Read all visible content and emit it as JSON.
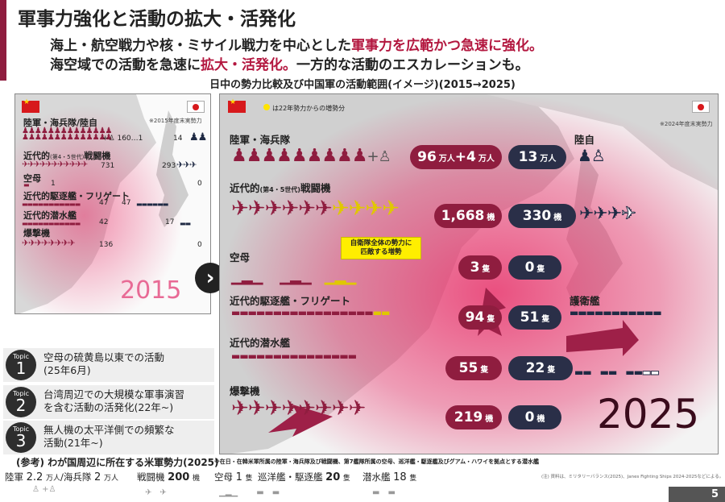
{
  "header": {
    "title": "軍事力強化と活動の拡大・活発化",
    "line1_a": "海上・航空戦力や核・ミサイル戦力を中心とした",
    "line1_b": "軍事力を広範かつ急速に強化。",
    "line2_a": "海空域での活動を急速に",
    "line2_b": "拡大・活発化。",
    "line2_c": "一方的な活動のエスカレーションも。"
  },
  "caption": "日中の勢力比較及び中国軍の活動範囲(イメージ)(2015→2025)",
  "panel2015": {
    "note": "※2015年度末実勢力",
    "year": "2015",
    "rows": [
      {
        "label": "陸軍・海兵隊/陸自",
        "cn": "160",
        "cn_extra": "1",
        "jp": "14"
      },
      {
        "label_a": "近代的",
        "label_sub": "(第4・5世代)",
        "label_b": "戦闘機",
        "cn": "731",
        "jp": "293"
      },
      {
        "label": "空母",
        "cn": "1",
        "jp": "0"
      },
      {
        "label": "近代的駆逐艦・フリゲート",
        "cn": "47",
        "jp": "47"
      },
      {
        "label": "近代的潜水艦",
        "cn": "42",
        "jp": "17"
      },
      {
        "label": "爆撃機",
        "cn": "136",
        "jp": "0"
      }
    ]
  },
  "panel2025": {
    "legend": "は22年勢力からの増勢分",
    "note": "※2024年度末実勢力",
    "year": "2025",
    "yellow_note": "自衛隊全体の勢力に\n匹敵する増勢",
    "jp_army_label": "陸自",
    "jp_navy_label": "護衛艦",
    "rows": [
      {
        "label": "陸軍・海兵隊",
        "cn_a": "96",
        "cn_unit_a": "万人",
        "cn_plus": "+4",
        "cn_unit_b": "万人",
        "jp": "13",
        "jp_unit": "万人"
      },
      {
        "label_a": "近代的",
        "label_sub": "(第4・5世代)",
        "label_b": "戦闘機",
        "cn": "1,668",
        "cn_unit": "機",
        "jp": "330",
        "jp_unit": "機"
      },
      {
        "label": "空母",
        "cn": "3",
        "cn_unit": "隻",
        "jp": "0",
        "jp_unit": "隻"
      },
      {
        "label": "近代的駆逐艦・フリゲート",
        "cn": "94",
        "cn_unit": "隻",
        "jp": "51",
        "jp_unit": "隻"
      },
      {
        "label": "近代的潜水艦",
        "cn": "55",
        "cn_unit": "隻",
        "jp": "22",
        "jp_unit": "隻"
      },
      {
        "label": "爆撃機",
        "cn": "219",
        "cn_unit": "機",
        "jp": "0",
        "jp_unit": "機"
      }
    ]
  },
  "topics": [
    {
      "tag": "Topic",
      "num": "1",
      "line1": "空母の硫黄島以東での活動",
      "line2": "(25年6月)"
    },
    {
      "tag": "Topic",
      "num": "2",
      "line1": "台湾周辺での大規模な軍事演習",
      "line2": "を含む活動の活発化(22年~)"
    },
    {
      "tag": "Topic",
      "num": "3",
      "line1": "無人機の太平洋側での頻繁な",
      "line2": "活動(21年~)"
    }
  ],
  "reference": {
    "title": "(参考) わが国周辺に所在する米軍勢力(2025)",
    "note": "※在日・在韓米軍所属の陸軍・海兵隊及び戦闘機、第7艦隊所属の空母、巡洋艦・駆逐艦及びグアム・ハワイを拠点とする潜水艦",
    "source": "(注) 資料は、ミリタリーバランス(2025)、Janes Fighting Ships 2024-2025などによる。",
    "army": {
      "label_a": "陸軍",
      "val_a": "2.2",
      "unit_a": "万人",
      "sep": "/",
      "label_b": "海兵隊",
      "val_b": "2",
      "unit_b": "万人"
    },
    "fighters": {
      "label": "戦闘機",
      "val": "200",
      "unit": "機"
    },
    "carriers": {
      "label": "空母",
      "val": "1",
      "unit": "隻"
    },
    "cruisers": {
      "label": "巡洋艦・駆逐艦",
      "val": "20",
      "unit": "隻"
    },
    "subs": {
      "label": "潜水艦",
      "val": "18",
      "unit": "隻"
    }
  },
  "page_number": "5",
  "colors": {
    "accent": "#8f1d3f",
    "navy": "#2a2f48",
    "pink": "#e8336b",
    "yellow": "#ffee00"
  }
}
